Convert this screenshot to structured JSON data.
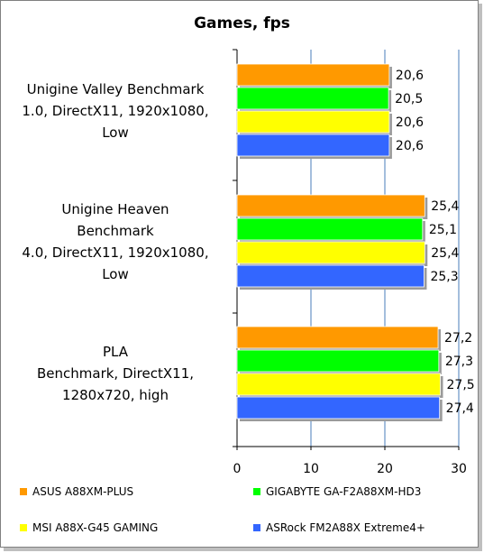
{
  "chart_data": {
    "type": "bar",
    "orientation": "horizontal",
    "title": "Games,  fps",
    "categories": [
      "Unigine Valley Benchmark 1.0, DirectX11, 1920x1080, Low",
      "Unigine Heaven Benchmark 4.0, DirectX11, 1920x1080, Low",
      "PLA Benchmark, DirectX11, 1280x720, high"
    ],
    "category_lines": [
      [
        "Unigine Valley Benchmark",
        "1.0, DirectX11, 1920x1080,",
        "Low"
      ],
      [
        "Unigine Heaven",
        "Benchmark",
        "4.0, DirectX11, 1920x1080,",
        "Low"
      ],
      [
        "PLA",
        "Benchmark, DirectX11,",
        "1280x720, high"
      ]
    ],
    "series": [
      {
        "name": "ASUS A88XM-PLUS",
        "color": "#ff9900",
        "values": [
          20.6,
          25.4,
          27.2
        ],
        "labels": [
          "20,6",
          "25,4",
          "27,2"
        ]
      },
      {
        "name": "GIGABYTE GA-F2A88XM-HD3",
        "color": "#00ff00",
        "values": [
          20.5,
          25.1,
          27.3
        ],
        "labels": [
          "20,5",
          "25,1",
          "27,3"
        ]
      },
      {
        "name": "MSI A88X-G45 GAMING",
        "color": "#ffff00",
        "values": [
          20.6,
          25.4,
          27.5
        ],
        "labels": [
          "20,6",
          "25,4",
          "27,5"
        ]
      },
      {
        "name": "ASRock FM2A88X Extreme4+",
        "color": "#3366ff",
        "values": [
          20.6,
          25.3,
          27.4
        ],
        "labels": [
          "20,6",
          "25,3",
          "27,4"
        ]
      }
    ],
    "xlim": [
      0,
      30
    ],
    "xticks": [
      0,
      10,
      20,
      30
    ],
    "grid": true,
    "legend_position": "bottom"
  }
}
